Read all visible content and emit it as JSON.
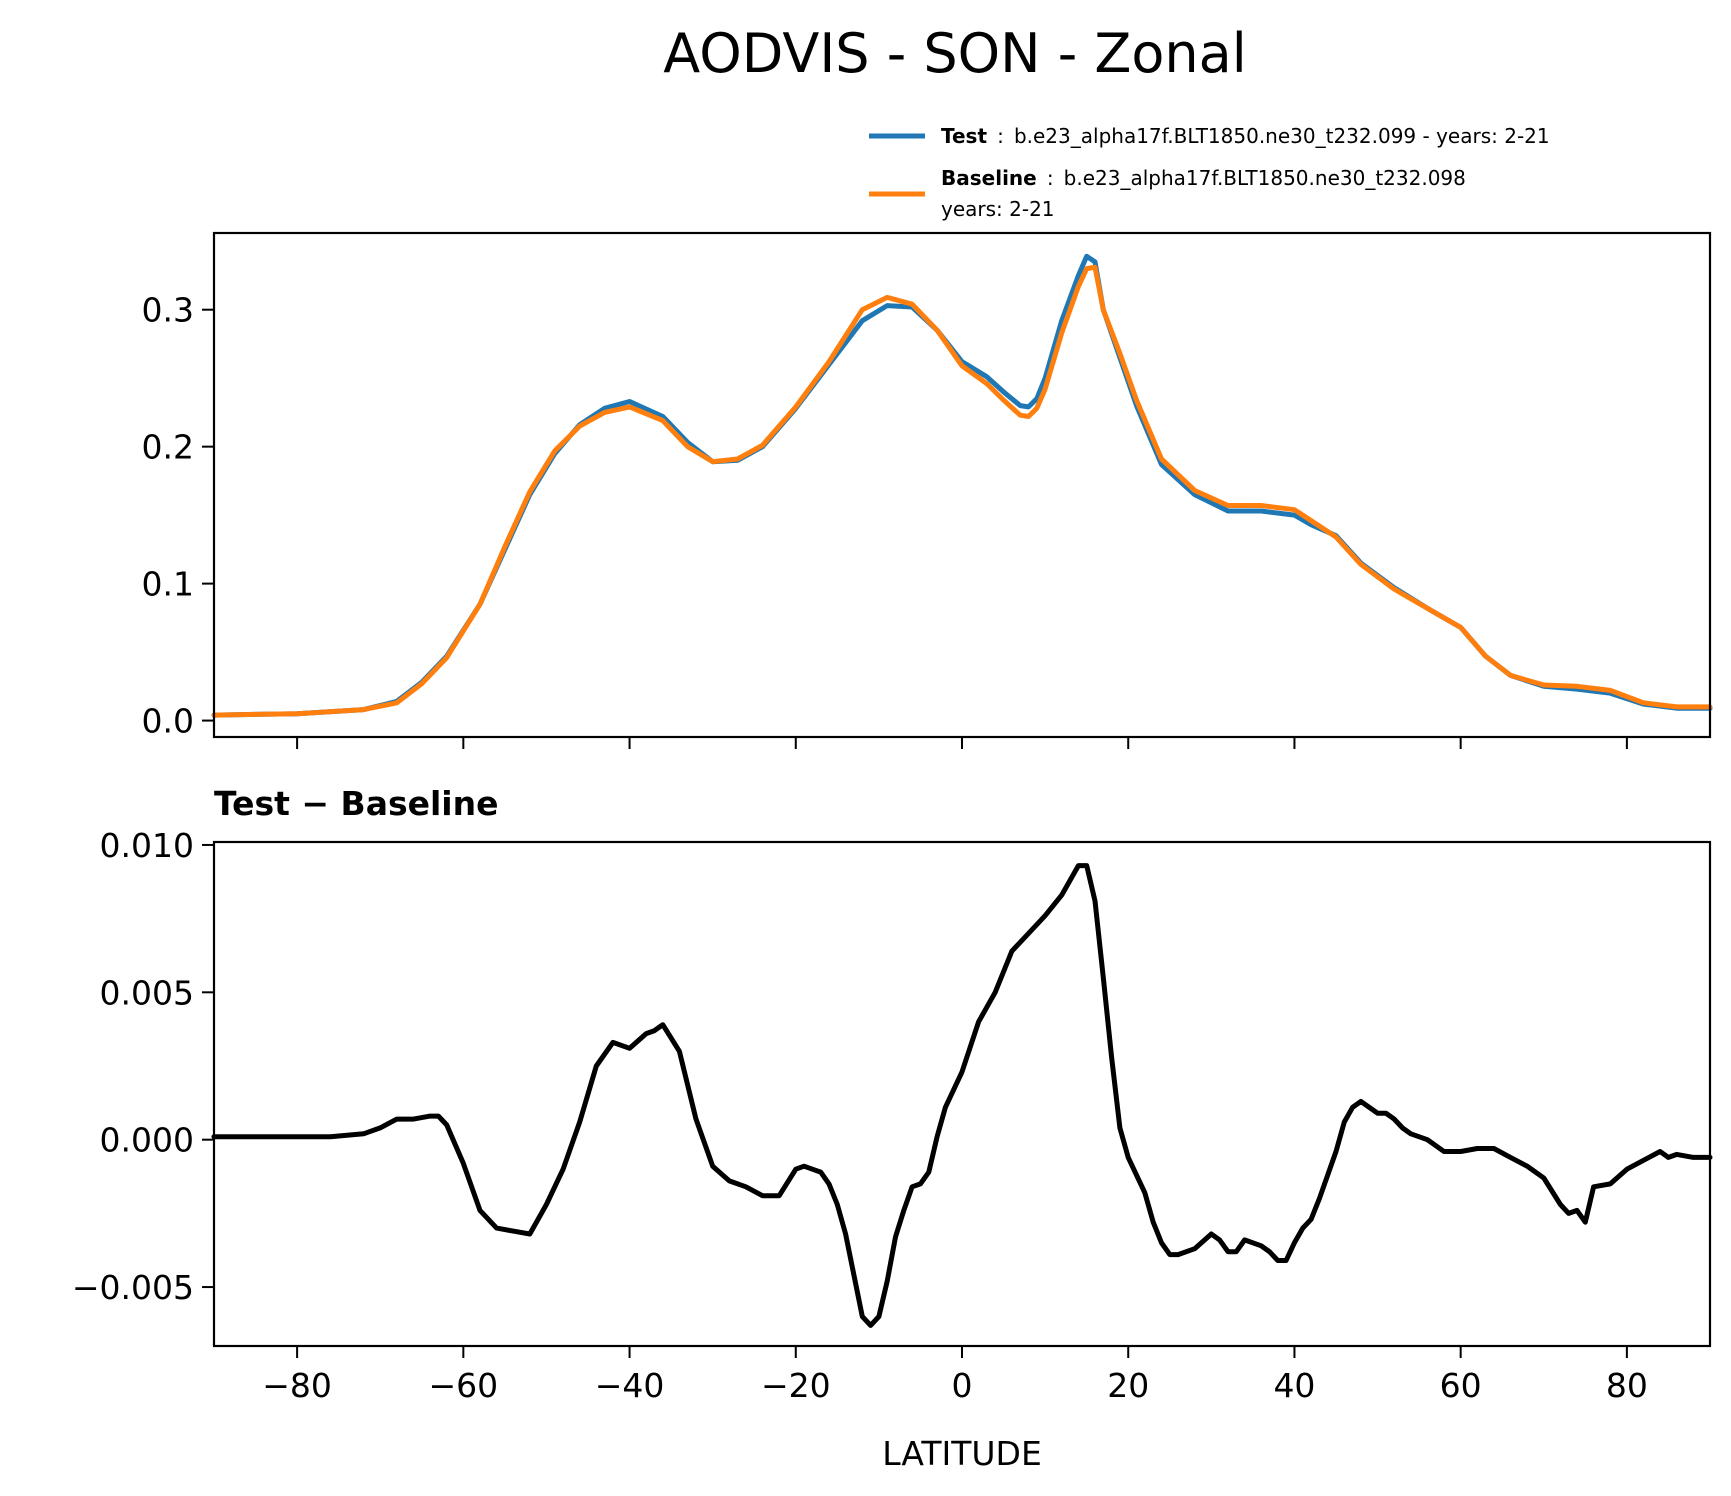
{
  "title": "AODVIS - SON - Zonal",
  "legend": {
    "test_label": "Test",
    "test_sep": ":",
    "test_text": "b.e23_alpha17f.BLT1850.ne30_t232.099 - years: 2-21",
    "baseline_label": "Baseline",
    "baseline_sep": ":",
    "baseline_text": "b.e23_alpha17f.BLT1850.ne30_t232.098",
    "baseline_years": "years: 2-21"
  },
  "colors": {
    "test": "#1f77b4",
    "baseline": "#ff7f0e",
    "diff": "#000000"
  },
  "chart_data": [
    {
      "type": "line",
      "title": "",
      "xlabel": "",
      "ylabel": "",
      "xlim": [
        -90,
        90
      ],
      "ylim": [
        -0.012,
        0.356
      ],
      "xticks": [
        -80,
        -60,
        -40,
        -20,
        0,
        20,
        40,
        60,
        80
      ],
      "yticks": [
        0.0,
        0.1,
        0.2,
        0.3
      ],
      "ytick_labels": [
        "0.0",
        "0.1",
        "0.2",
        "0.3"
      ],
      "legend_position": "above-right",
      "series": [
        {
          "name": "Test",
          "color": "#1f77b4",
          "x": [
            -90,
            -80,
            -72,
            -68,
            -65,
            -62,
            -58,
            -55,
            -52,
            -49,
            -46,
            -43,
            -40,
            -36,
            -33,
            -30,
            -27,
            -24,
            -20,
            -16,
            -12,
            -9,
            -6,
            -3,
            0,
            3,
            5,
            7,
            8,
            9,
            10,
            12,
            14,
            15,
            16,
            17,
            19,
            21,
            24,
            28,
            32,
            36,
            40,
            42,
            45,
            48,
            52,
            56,
            60,
            63,
            66,
            70,
            74,
            78,
            82,
            86,
            90
          ],
          "y": [
            0.004,
            0.005,
            0.008,
            0.014,
            0.028,
            0.047,
            0.085,
            0.125,
            0.165,
            0.195,
            0.216,
            0.228,
            0.233,
            0.222,
            0.203,
            0.189,
            0.19,
            0.2,
            0.228,
            0.26,
            0.292,
            0.303,
            0.302,
            0.285,
            0.262,
            0.251,
            0.24,
            0.23,
            0.229,
            0.235,
            0.25,
            0.292,
            0.325,
            0.339,
            0.335,
            0.3,
            0.265,
            0.23,
            0.187,
            0.165,
            0.153,
            0.153,
            0.15,
            0.143,
            0.135,
            0.115,
            0.097,
            0.082,
            0.068,
            0.047,
            0.033,
            0.025,
            0.023,
            0.02,
            0.012,
            0.009,
            0.009
          ]
        },
        {
          "name": "Baseline",
          "color": "#ff7f0e",
          "x": [
            -90,
            -80,
            -72,
            -68,
            -65,
            -62,
            -58,
            -55,
            -52,
            -49,
            -46,
            -43,
            -40,
            -36,
            -33,
            -30,
            -27,
            -24,
            -20,
            -16,
            -12,
            -9,
            -6,
            -3,
            0,
            3,
            5,
            7,
            8,
            9,
            10,
            12,
            14,
            15,
            16,
            17,
            19,
            21,
            24,
            28,
            32,
            36,
            40,
            42,
            45,
            48,
            52,
            56,
            60,
            63,
            66,
            70,
            74,
            78,
            82,
            86,
            90
          ],
          "y": [
            0.004,
            0.005,
            0.008,
            0.013,
            0.027,
            0.046,
            0.085,
            0.127,
            0.167,
            0.197,
            0.215,
            0.225,
            0.229,
            0.219,
            0.2,
            0.189,
            0.191,
            0.201,
            0.229,
            0.262,
            0.3,
            0.309,
            0.304,
            0.285,
            0.259,
            0.246,
            0.234,
            0.223,
            0.222,
            0.228,
            0.242,
            0.283,
            0.317,
            0.33,
            0.331,
            0.3,
            0.268,
            0.234,
            0.191,
            0.168,
            0.157,
            0.157,
            0.154,
            0.146,
            0.134,
            0.114,
            0.096,
            0.082,
            0.068,
            0.047,
            0.033,
            0.026,
            0.025,
            0.022,
            0.013,
            0.01,
            0.01
          ]
        }
      ]
    },
    {
      "type": "line",
      "title": "Test − Baseline",
      "xlabel": "LATITUDE",
      "ylabel": "",
      "xlim": [
        -90,
        90
      ],
      "ylim": [
        -0.007,
        0.0101
      ],
      "xticks": [
        -80,
        -60,
        -40,
        -20,
        0,
        20,
        40,
        60,
        80
      ],
      "xtick_labels": [
        "−80",
        "−60",
        "−40",
        "−20",
        "0",
        "20",
        "40",
        "60",
        "80"
      ],
      "yticks": [
        -0.005,
        0.0,
        0.005,
        0.01
      ],
      "ytick_labels": [
        "−0.005",
        "0.000",
        "0.005",
        "0.010"
      ],
      "series": [
        {
          "name": "Test − Baseline",
          "color": "#000000",
          "x": [
            -90,
            -85,
            -80,
            -76,
            -72,
            -70,
            -68,
            -66,
            -64,
            -63,
            -62,
            -60,
            -58,
            -56,
            -54,
            -52,
            -50,
            -48,
            -46,
            -44,
            -42,
            -40,
            -38,
            -37,
            -36,
            -34,
            -32,
            -30,
            -28,
            -26,
            -24,
            -22,
            -20,
            -19,
            -18,
            -17,
            -16,
            -15,
            -14,
            -12,
            -11,
            -10,
            -9,
            -8,
            -7,
            -6,
            -5,
            -4,
            -3,
            -2,
            0,
            2,
            4,
            6,
            8,
            10,
            12,
            14,
            15,
            16,
            17,
            18,
            19,
            20,
            21,
            22,
            23,
            24,
            25,
            26,
            28,
            30,
            31,
            32,
            33,
            34,
            36,
            37,
            38,
            39,
            40,
            41,
            42,
            43,
            44,
            45,
            46,
            47,
            48,
            49,
            50,
            51,
            52,
            53,
            54,
            56,
            58,
            60,
            62,
            64,
            66,
            68,
            70,
            72,
            73,
            74,
            75,
            76,
            78,
            80,
            82,
            84,
            85,
            86,
            88,
            90
          ],
          "y": [
            0.0001,
            0.0001,
            0.0001,
            0.0001,
            0.0002,
            0.0004,
            0.0007,
            0.0007,
            0.0008,
            0.0008,
            0.0005,
            -0.0008,
            -0.0024,
            -0.003,
            -0.0031,
            -0.0032,
            -0.0022,
            -0.001,
            0.0006,
            0.0025,
            0.0033,
            0.0031,
            0.0036,
            0.0037,
            0.0039,
            0.003,
            0.0007,
            -0.0009,
            -0.0014,
            -0.0016,
            -0.0019,
            -0.0019,
            -0.001,
            -0.0009,
            -0.001,
            -0.0011,
            -0.0015,
            -0.0022,
            -0.0032,
            -0.006,
            -0.0063,
            -0.006,
            -0.0048,
            -0.0033,
            -0.0024,
            -0.0016,
            -0.0015,
            -0.0011,
            0.0001,
            0.0011,
            0.0023,
            0.004,
            0.005,
            0.0064,
            0.007,
            0.0076,
            0.0083,
            0.0093,
            0.0093,
            0.0081,
            0.0055,
            0.0028,
            0.0004,
            -0.0006,
            -0.0012,
            -0.0018,
            -0.0028,
            -0.0035,
            -0.0039,
            -0.0039,
            -0.0037,
            -0.0032,
            -0.0034,
            -0.0038,
            -0.0038,
            -0.0034,
            -0.0036,
            -0.0038,
            -0.0041,
            -0.0041,
            -0.0035,
            -0.003,
            -0.0027,
            -0.002,
            -0.0012,
            -0.0004,
            0.0006,
            0.0011,
            0.0013,
            0.0011,
            0.0009,
            0.0009,
            0.0007,
            0.0004,
            0.0002,
            0.0,
            -0.0004,
            -0.0004,
            -0.0003,
            -0.0003,
            -0.0006,
            -0.0009,
            -0.0013,
            -0.0022,
            -0.0025,
            -0.0024,
            -0.0028,
            -0.0016,
            -0.0015,
            -0.001,
            -0.0007,
            -0.0004,
            -0.0006,
            -0.0005,
            -0.0006,
            -0.0006
          ]
        }
      ]
    }
  ]
}
